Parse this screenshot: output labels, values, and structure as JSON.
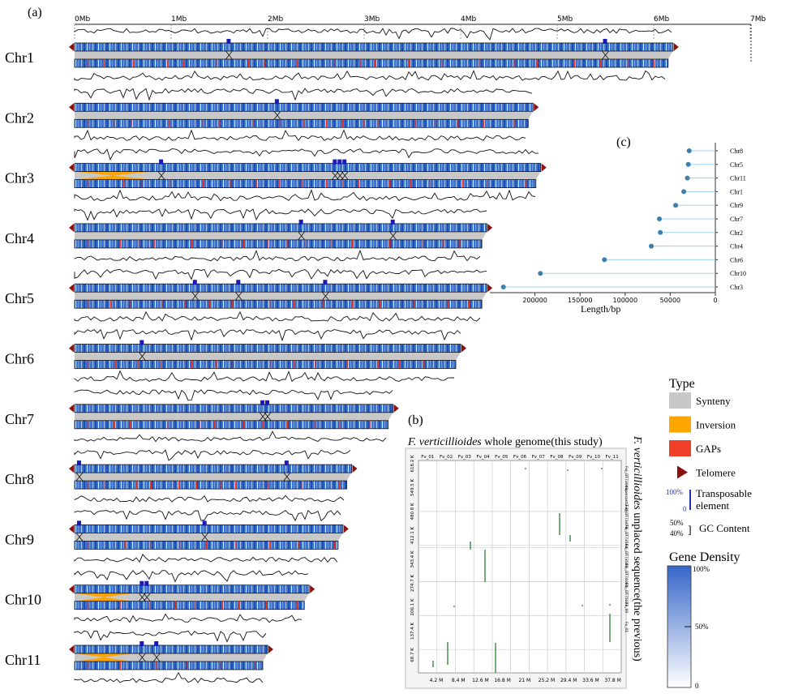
{
  "panels": {
    "a": "(a)",
    "b": "(b)",
    "c": "(c)"
  },
  "panel_a": {
    "scale_ticks": [
      "0Mb",
      "1Mb",
      "2Mb",
      "3Mb",
      "4Mb",
      "5Mb",
      "6Mb",
      "7Mb"
    ],
    "chromosomes": [
      {
        "name": "Chr1",
        "length_mb": 6.2,
        "inverted": false,
        "links": [
          1.6,
          5.5
        ]
      },
      {
        "name": "Chr2",
        "length_mb": 4.75,
        "inverted": false,
        "links": [
          2.1
        ]
      },
      {
        "name": "Chr3",
        "length_mb": 4.83,
        "inverted": true,
        "links": [
          0.9,
          2.7,
          2.75,
          2.8
        ]
      },
      {
        "name": "Chr4",
        "length_mb": 4.27,
        "inverted": false,
        "links": [
          2.35,
          3.3
        ]
      },
      {
        "name": "Chr5",
        "length_mb": 4.27,
        "inverted": false,
        "links": [
          1.25,
          1.7,
          2.6
        ]
      },
      {
        "name": "Chr6",
        "length_mb": 4.0,
        "inverted": false,
        "links": [
          0.7
        ]
      },
      {
        "name": "Chr7",
        "length_mb": 3.3,
        "inverted": false,
        "links": [
          1.95,
          2.0
        ]
      },
      {
        "name": "Chr8",
        "length_mb": 2.87,
        "inverted": false,
        "links": [
          0.05,
          2.2
        ]
      },
      {
        "name": "Chr9",
        "length_mb": 2.78,
        "inverted": false,
        "links": [
          0.05,
          1.35
        ]
      },
      {
        "name": "Chr10",
        "length_mb": 2.43,
        "inverted": true,
        "links": [
          0.7,
          0.75
        ]
      },
      {
        "name": "Chr11",
        "length_mb": 2.0,
        "inverted": true,
        "links": [
          0.7,
          0.85
        ]
      }
    ]
  },
  "panel_b": {
    "title_species": "F. verticillioides",
    "title_rest": " whole genome(this study)",
    "side_species": "F. verticillioides",
    "side_rest": " unplaced sequence(the previous)",
    "top_labels": [
      "Fv_01",
      "Fv_02",
      "Fv_03",
      "Fv_04",
      "Fv_05",
      "Fv_06",
      "Fv_07",
      "Fv_08",
      "Fv_09",
      "Fv_10",
      "Fv_11"
    ],
    "x_ticks": [
      "4.2 M",
      "8.4 M",
      "12.6 M",
      "16.8 M",
      "21 M",
      "25.2 M",
      "29.4 M",
      "33.6 M",
      "37.8 M"
    ],
    "y_ticks": [
      "68.7 K",
      "137.4 K",
      "206.1 K",
      "274.7 K",
      "343.4 K",
      "412.1 K",
      "480.8 K",
      "549.5 K",
      "618.2 K"
    ],
    "right_labels": [
      "FvJ_DT73001",
      "supercont3.39",
      "FvJ_DT73478",
      "FvJ_DT73564",
      "FvJ_DT73589",
      "FvJ_DT74006",
      "FvJ_DT75021",
      "Fv_00",
      "Fv_01"
    ]
  },
  "chart_data": {
    "type": "lollipop",
    "title": "(c)",
    "xlabel": "Length/bp",
    "ylabel": "",
    "xlim": [
      0,
      250000
    ],
    "x_ticks": [
      "200000",
      "150000",
      "100000",
      "50000",
      "0"
    ],
    "categories": [
      "Chr8",
      "Chr5",
      "Chr11",
      "Chr1",
      "Chr9",
      "Chr7",
      "Chr2",
      "Chr4",
      "Chr6",
      "Chr10",
      "Chr3"
    ],
    "values": [
      29000,
      30000,
      31000,
      35000,
      44000,
      62000,
      61000,
      71000,
      123000,
      194000,
      235000
    ],
    "color": "#3a7fb0"
  },
  "legend": {
    "type_title": "Type",
    "items": [
      {
        "label": "Synteny",
        "color": "#c8c8c8"
      },
      {
        "label": "Inversion",
        "color": "#ffa500"
      },
      {
        "label": "GAPs",
        "color": "#f0402a"
      },
      {
        "label": "Telomere",
        "color": "#8b1010"
      }
    ],
    "te_label": "Transposable element",
    "te_hi": "100%",
    "te_lo": "0",
    "gc_label": "GC Content",
    "gc_hi": "50%",
    "gc_lo": "40%",
    "gene_density_title": "Gene Density",
    "gd_hi": "100%",
    "gd_mid": "50%",
    "gd_lo": "0"
  }
}
